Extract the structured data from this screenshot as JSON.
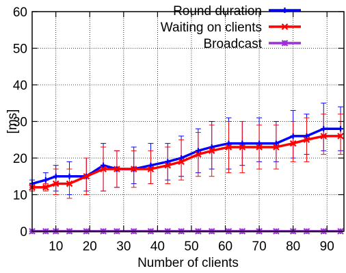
{
  "chart_data": {
    "type": "line",
    "xlabel": "Number of clients",
    "ylabel": "[ms]",
    "xlim": [
      3,
      95
    ],
    "ylim": [
      0,
      60
    ],
    "xticks": [
      10,
      20,
      30,
      40,
      50,
      60,
      70,
      80,
      90
    ],
    "yticks": [
      0,
      10,
      20,
      30,
      40,
      50,
      60
    ],
    "grid": true,
    "legend_position": "top-right",
    "x": [
      3,
      7,
      10,
      14,
      19,
      24,
      28,
      33,
      38,
      43,
      47,
      52,
      56,
      61,
      65,
      70,
      75,
      80,
      84,
      89,
      94
    ],
    "series": [
      {
        "name": "Round duration",
        "color": "#0000ff",
        "marker": "plus",
        "values": [
          13,
          14,
          15,
          15,
          15,
          18,
          17,
          17,
          18,
          19,
          20,
          22,
          23,
          24,
          24,
          24,
          24,
          26,
          26,
          28,
          28
        ],
        "err_low": [
          12,
          12,
          11,
          10,
          11,
          11,
          12,
          13,
          13,
          14,
          15,
          16,
          17,
          17,
          18,
          19,
          19,
          20,
          21,
          22,
          22
        ],
        "err_high": [
          14,
          16,
          18,
          19,
          20,
          24,
          22,
          23,
          24,
          24,
          26,
          28,
          30,
          31,
          30,
          31,
          30,
          33,
          32,
          35,
          34
        ]
      },
      {
        "name": "Waiting on clients",
        "color": "#ff0000",
        "marker": "x",
        "values": [
          12,
          12,
          13,
          13,
          15,
          17,
          17,
          17,
          17,
          18,
          19,
          21,
          22,
          23,
          23,
          23,
          23,
          24,
          25,
          26,
          26
        ],
        "err_low": [
          11,
          11,
          10,
          9,
          10,
          11,
          12,
          12,
          13,
          13,
          14,
          15,
          15,
          16,
          16,
          17,
          17,
          19,
          19,
          21,
          21
        ],
        "err_high": [
          13,
          13,
          17,
          17,
          20,
          23,
          22,
          22,
          22,
          23,
          25,
          27,
          29,
          30,
          30,
          29,
          29,
          30,
          31,
          32,
          32
        ]
      },
      {
        "name": "Broadcast",
        "color": "#9b30d9",
        "marker": "star",
        "values": [
          0,
          0,
          0,
          0,
          0,
          0,
          0,
          0,
          0,
          0,
          0,
          0,
          0,
          0,
          0,
          0,
          0,
          0,
          0,
          0,
          0
        ]
      }
    ]
  }
}
